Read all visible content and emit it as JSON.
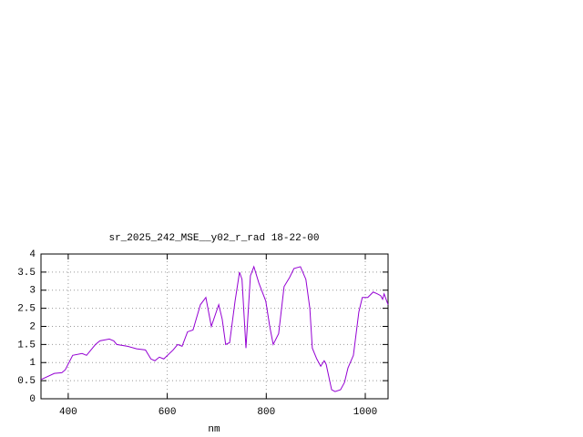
{
  "chart_data": {
    "type": "line",
    "title": "sr_2025_242_MSE__y02_r_rad 18-22-00",
    "x_label": "nm",
    "x": [
      345,
      372,
      387,
      394,
      409,
      428,
      437,
      455,
      464,
      483,
      492,
      498,
      520,
      538,
      556,
      567,
      575,
      584,
      593,
      612,
      621,
      630,
      641,
      652,
      667,
      678,
      689,
      704,
      711,
      718,
      726,
      737,
      746,
      751,
      759,
      768,
      775,
      785,
      799,
      807,
      814,
      825,
      836,
      847,
      856,
      869,
      880,
      888,
      893,
      902,
      910,
      917,
      921,
      932,
      939,
      950,
      958,
      965,
      976,
      987,
      994,
      1005,
      1016,
      1024,
      1031,
      1035,
      1038,
      1046
    ],
    "series": [
      {
        "name": "sr_2025_242_MSE__y02_r_rad",
        "color": "#9400d3",
        "values": [
          0.53,
          0.7,
          0.72,
          0.8,
          1.2,
          1.25,
          1.2,
          1.5,
          1.6,
          1.65,
          1.6,
          1.5,
          1.45,
          1.38,
          1.35,
          1.1,
          1.05,
          1.15,
          1.1,
          1.35,
          1.5,
          1.45,
          1.85,
          1.9,
          2.6,
          2.8,
          2.0,
          2.6,
          2.2,
          1.5,
          1.55,
          2.7,
          3.5,
          3.3,
          1.4,
          3.4,
          3.65,
          3.2,
          2.7,
          2.0,
          1.5,
          1.8,
          3.1,
          3.35,
          3.6,
          3.65,
          3.3,
          2.5,
          1.4,
          1.1,
          0.9,
          1.05,
          0.95,
          0.25,
          0.2,
          0.25,
          0.45,
          0.85,
          1.2,
          2.4,
          2.8,
          2.8,
          2.95,
          2.9,
          2.85,
          2.75,
          2.9,
          2.6
        ]
      }
    ],
    "xlim": [
      345,
      1046
    ],
    "xticks": [
      400,
      600,
      800,
      1000
    ],
    "ylim": [
      0,
      4
    ],
    "yticks": [
      0,
      0.5,
      1,
      1.5,
      2,
      2.5,
      3,
      3.5,
      4
    ],
    "grid": true
  }
}
